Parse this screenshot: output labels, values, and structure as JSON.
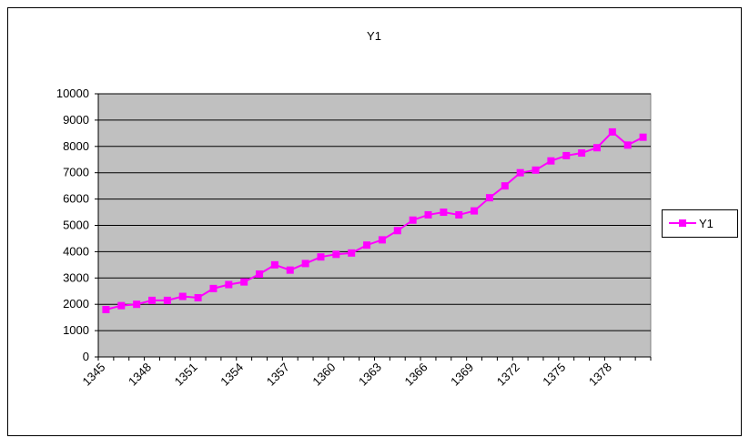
{
  "chart_data": {
    "type": "line",
    "title": "Y1",
    "categories": [
      "1345",
      null,
      null,
      "1348",
      null,
      null,
      "1351",
      null,
      null,
      "1354",
      null,
      null,
      "1357",
      null,
      null,
      "1360",
      null,
      null,
      "1363",
      null,
      null,
      "1366",
      null,
      null,
      "1369",
      null,
      null,
      "1372",
      null,
      null,
      "1375",
      null,
      null,
      "1378",
      null,
      null
    ],
    "series": [
      {
        "name": "Y1",
        "color": "#ff00ff",
        "values": [
          1800,
          1950,
          2000,
          2150,
          2150,
          2300,
          2250,
          2600,
          2750,
          2850,
          3150,
          3500,
          3300,
          3550,
          3800,
          3900,
          3950,
          4250,
          4450,
          4800,
          5200,
          5400,
          5500,
          5400,
          5550,
          6050,
          6500,
          7000,
          7100,
          7450,
          7650,
          7750,
          7950,
          8550,
          8050,
          8350
        ]
      }
    ],
    "ylim": [
      0,
      10000
    ],
    "yticks": [
      0,
      1000,
      2000,
      3000,
      4000,
      5000,
      6000,
      7000,
      8000,
      9000,
      10000
    ],
    "grid": true,
    "legend": "right"
  }
}
